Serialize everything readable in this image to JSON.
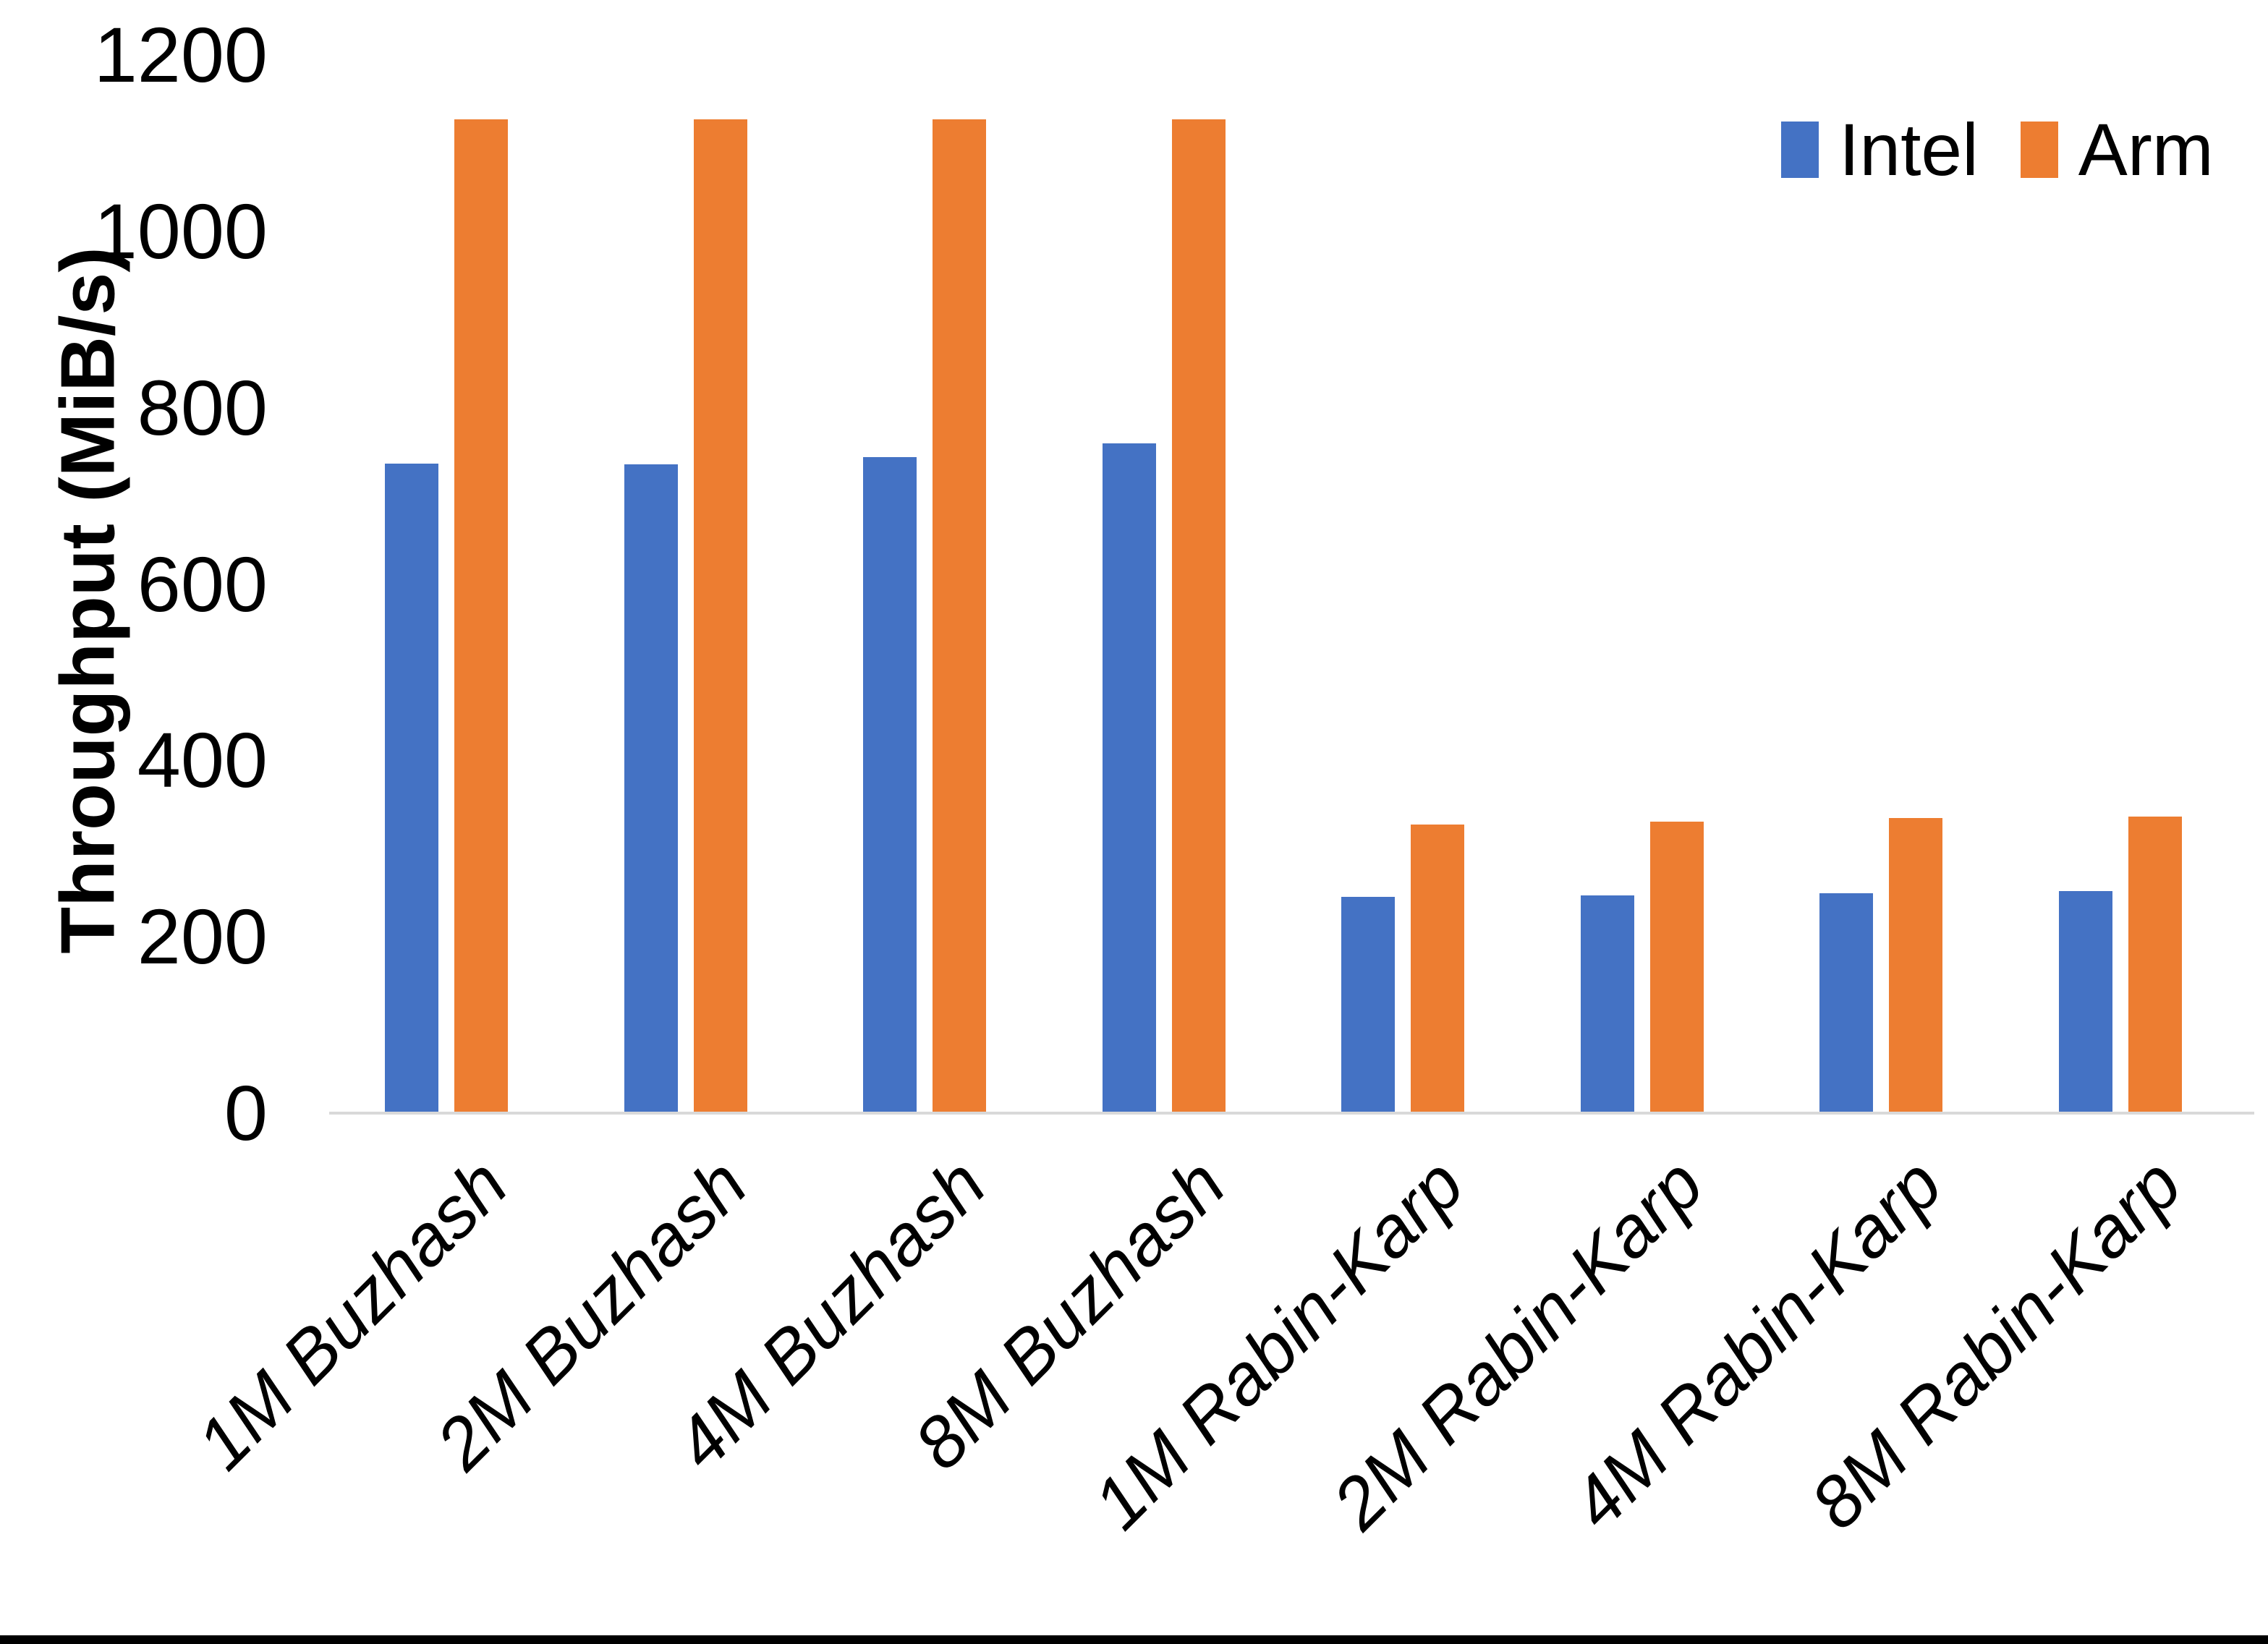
{
  "page": {
    "background_color": "#FFFFFF",
    "bottom_border_color": "#000000"
  },
  "chart_data": {
    "type": "bar",
    "title": "",
    "xlabel": "",
    "ylabel": "Throughput (MiB/s)",
    "categories": [
      "1M Buzhash",
      "2M Buzhash",
      "4M Buzhash",
      "8M Buzhash",
      "1M Rabin-Karp",
      "2M Rabin-Karp",
      "4M Rabin-Karp",
      "8M Rabin-Karp"
    ],
    "series": [
      {
        "name": "Intel",
        "color": "#4472C4",
        "values": [
          735,
          734,
          742,
          758,
          244,
          245,
          248,
          250
        ]
      },
      {
        "name": "Arm",
        "color": "#ED7D31",
        "values": [
          1125,
          1125,
          1125,
          1125,
          326,
          329,
          333,
          335
        ]
      }
    ],
    "ylim": [
      0,
      1200
    ],
    "yticks": [
      0,
      200,
      400,
      600,
      800,
      1000,
      1200
    ],
    "grid": false,
    "legend_position": "top-right",
    "x_tick_rotation_deg": 45,
    "x_tick_style": "italic",
    "axis_line_color": "#D9D9D9"
  }
}
